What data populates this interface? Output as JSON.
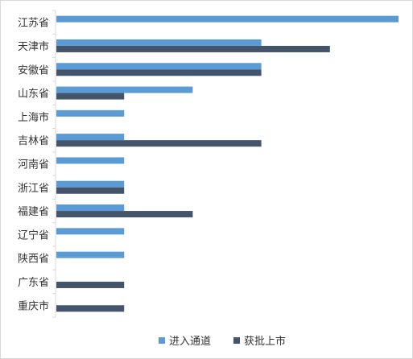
{
  "chart_data": {
    "type": "bar",
    "orientation": "horizontal",
    "title": "",
    "xlabel": "",
    "ylabel": "",
    "categories": [
      "江苏省",
      "天津市",
      "安徽省",
      "山东省",
      "上海市",
      "吉林省",
      "河南省",
      "浙江省",
      "福建省",
      "辽宁省",
      "陕西省",
      "广东省",
      "重庆市"
    ],
    "series": [
      {
        "name": "进入通道",
        "color": "#5b9bd5",
        "values": [
          5,
          3,
          3,
          2,
          1,
          1,
          1,
          1,
          1,
          1,
          1,
          0,
          0
        ]
      },
      {
        "name": "获批上市",
        "color": "#44546a",
        "values": [
          0,
          4,
          3,
          1,
          0,
          3,
          0,
          1,
          2,
          0,
          0,
          1,
          1
        ]
      }
    ],
    "xlim": [
      0,
      5
    ],
    "gridlines": false,
    "x_axis_visible": false,
    "legend_position": "bottom"
  }
}
